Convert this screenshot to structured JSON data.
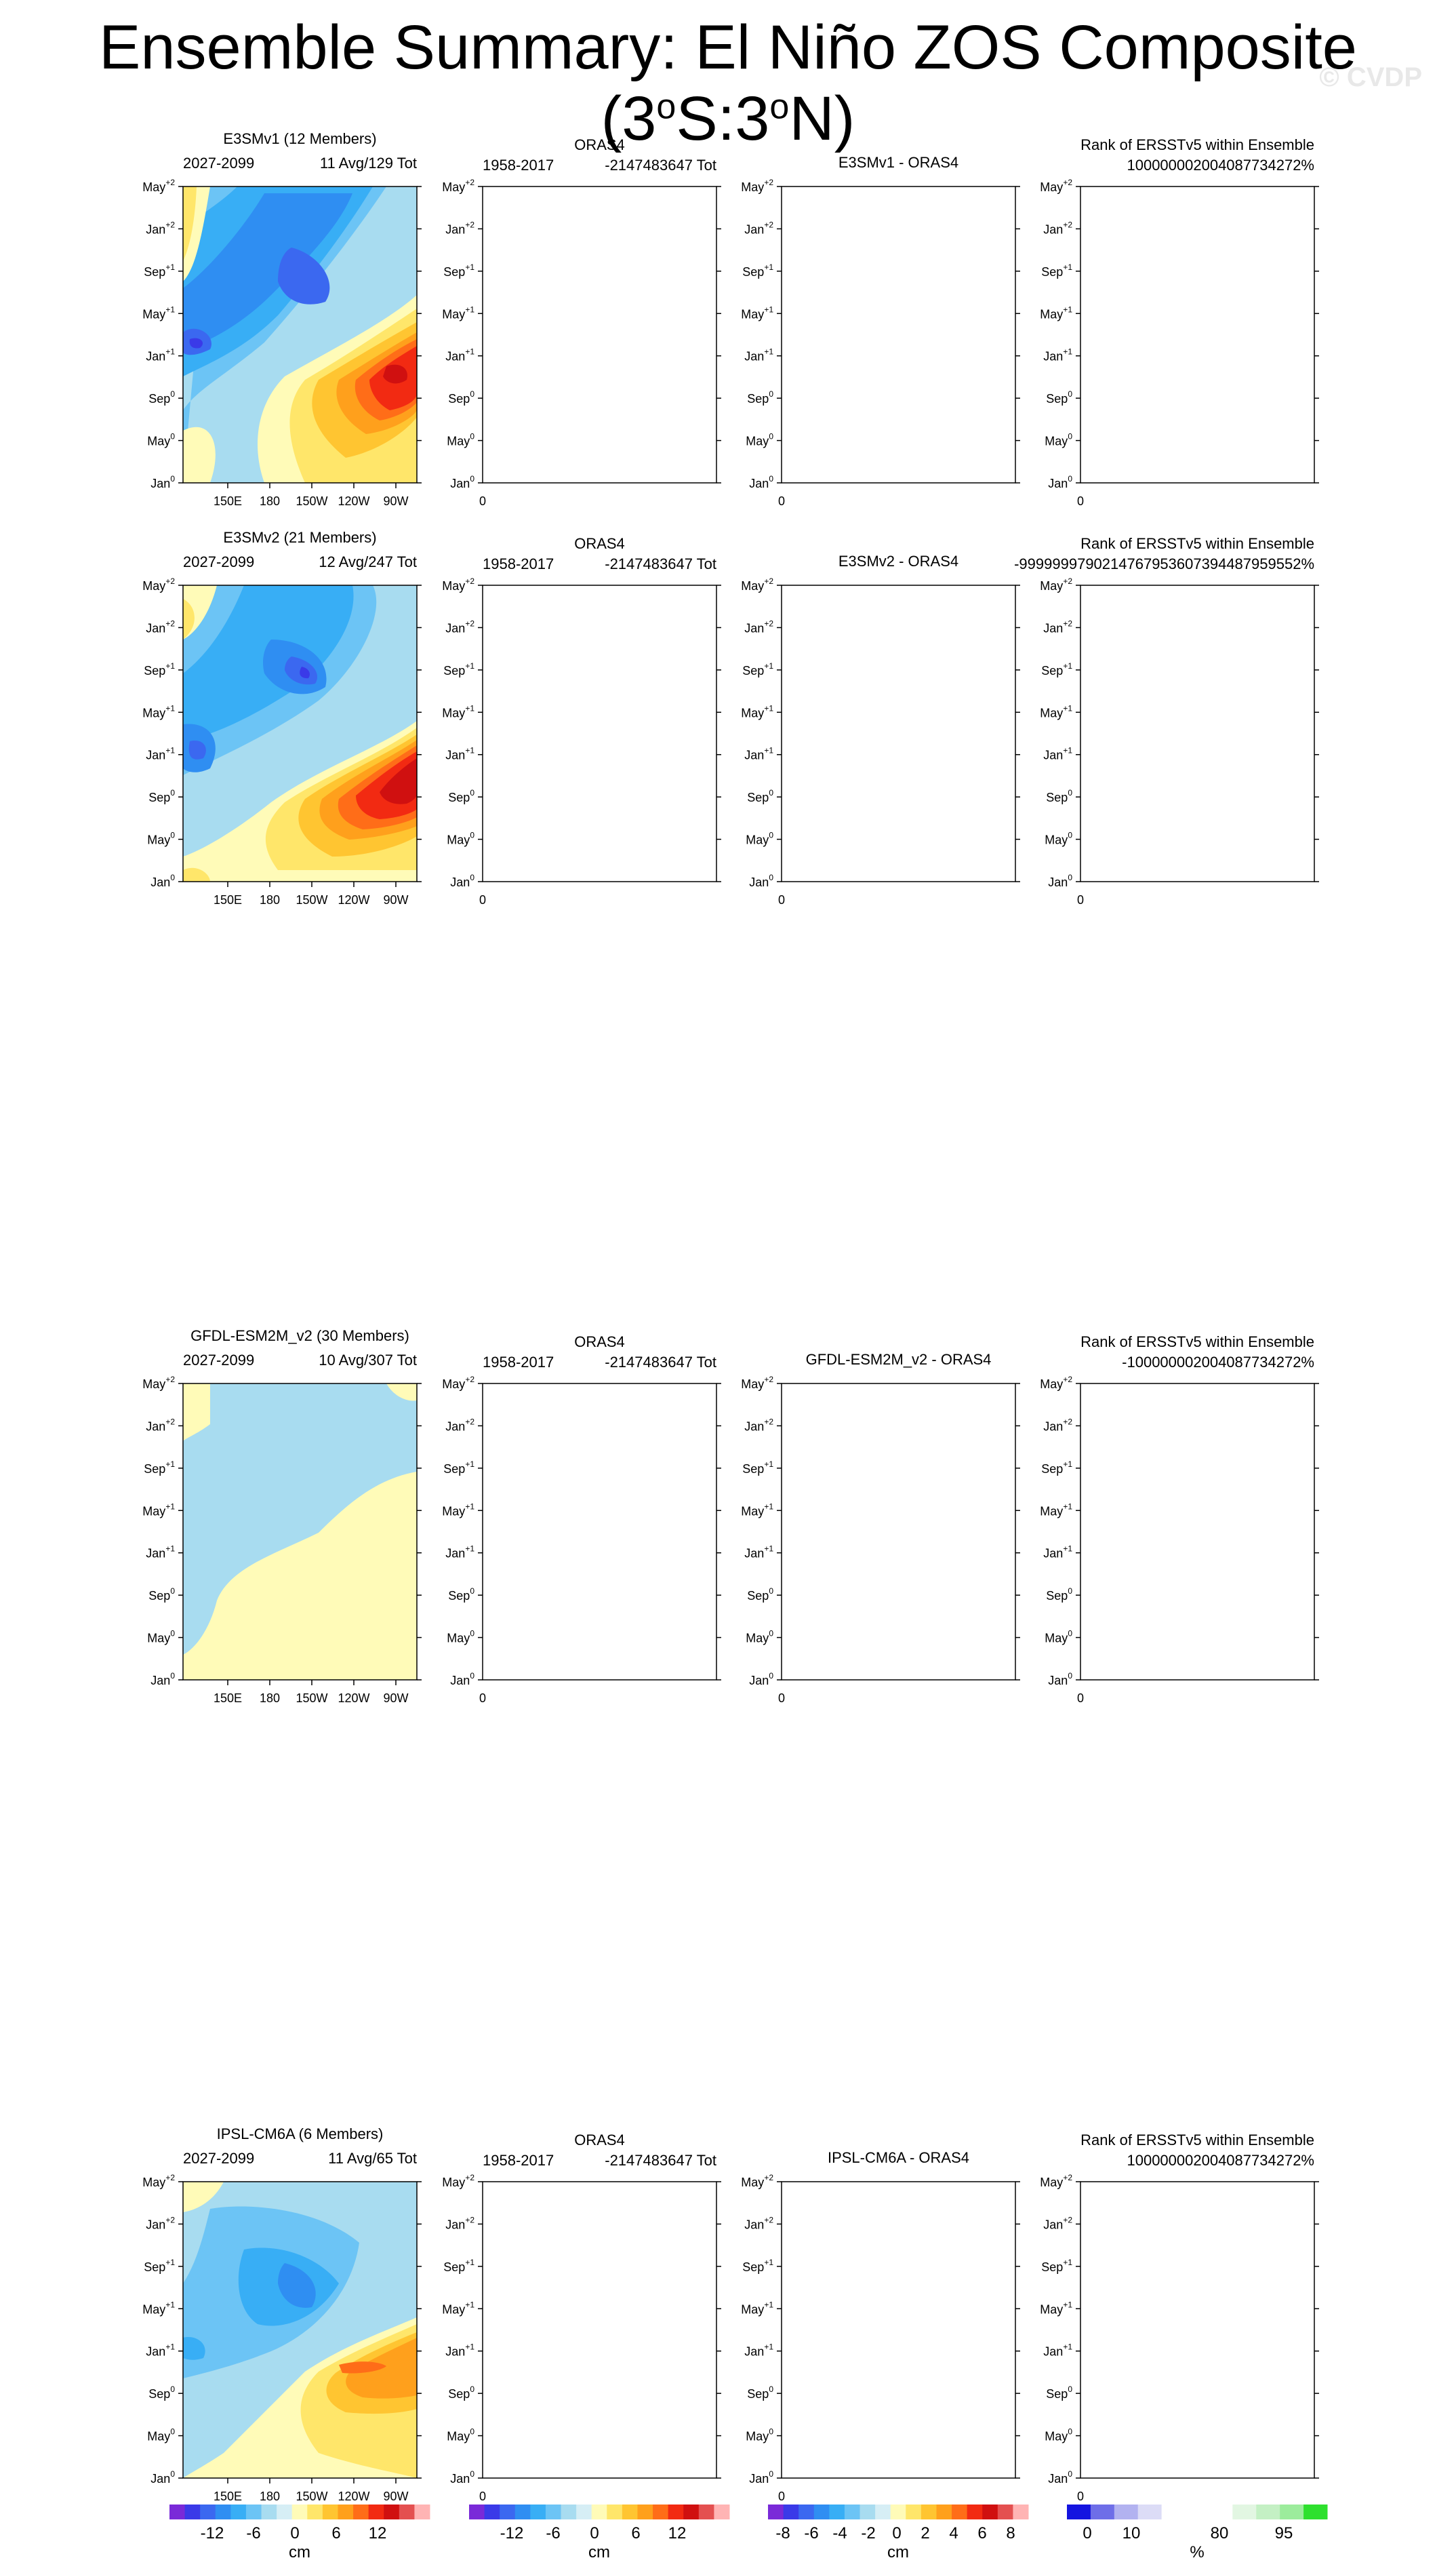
{
  "page": {
    "title_main": "Ensemble Summary: El Niño ZOS Composite (3",
    "title_deg1": "o",
    "title_mid": "S:3",
    "title_deg2": "o",
    "title_end": "N)",
    "watermark": "© CVDP"
  },
  "y_ticks": [
    {
      "base": "Jan",
      "sup": "0"
    },
    {
      "base": "May",
      "sup": "0"
    },
    {
      "base": "Sep",
      "sup": "0"
    },
    {
      "base": "Jan",
      "sup": "+1"
    },
    {
      "base": "May",
      "sup": "+1"
    },
    {
      "base": "Sep",
      "sup": "+1"
    },
    {
      "base": "Jan",
      "sup": "+2"
    },
    {
      "base": "May",
      "sup": "+2"
    }
  ],
  "x_ticks": [
    "150E",
    "180",
    "150W",
    "120W",
    "90W"
  ],
  "obs_x_tick": "0",
  "rows": [
    {
      "model": "E3SMv1 (12 Members)",
      "model_color": "#1f7a9a",
      "period": "2027-2099",
      "avg": "11 Avg/129 Tot",
      "obs_title": "ORAS4",
      "obs_period": "1958-2017",
      "obs_tot": "-2147483647 Tot",
      "diff_title": "E3SMv1 - ORAS4",
      "rank_title": "Rank of ERSSTv5 within Ensemble",
      "rank_value": "10000000200408773427​2%",
      "field": "strong1"
    },
    {
      "model": "E3SMv2 (21 Members)",
      "model_color": "#4f9a4f",
      "period": "2027-2099",
      "avg": "12 Avg/247 Tot",
      "obs_title": "ORAS4",
      "obs_period": "1958-2017",
      "obs_tot": "-2147483647 Tot",
      "diff_title": "E3SMv2 - ORAS4",
      "rank_title": "Rank of ERSSTv5 within Ensemble",
      "rank_value": "-99999997902147679536073944879595​52%",
      "field": "strong2"
    },
    {
      "model": "GFDL-ESM2M_v2 (30 Members)",
      "model_color": "#9a4a1a",
      "period": "2027-2099",
      "avg": "10 Avg/307 Tot",
      "obs_title": "ORAS4",
      "obs_period": "1958-2017",
      "obs_tot": "-2147483647 Tot",
      "diff_title": "GFDL-ESM2M_v2 - ORAS4",
      "rank_title": "Rank of ERSSTv5 within Ensemble",
      "rank_value": "-10000000200408773427​2%",
      "field": "weak"
    },
    {
      "model": "IPSL-CM6A (6 Members)",
      "model_color": "#d7a878",
      "period": "2027-2099",
      "avg": "11 Avg/65 Tot",
      "obs_title": "ORAS4",
      "obs_period": "1958-2017",
      "obs_tot": "-2147483647 Tot",
      "diff_title": "IPSL-CM6A - ORAS4",
      "rank_title": "Rank of ERSSTv5 within Ensemble",
      "rank_value": "10000000200408773427​2%",
      "field": "medium"
    }
  ],
  "colorbars": [
    {
      "unit": "cm",
      "labels": [
        "-12",
        "-6",
        "0",
        "6",
        "12"
      ],
      "colors": [
        "#7a2ad8",
        "#3a3ae8",
        "#3b68f0",
        "#2f8ef2",
        "#38aef5",
        "#6cc4f5",
        "#a8dcf0",
        "#d6eef5",
        "#fffbb8",
        "#ffe66a",
        "#ffc531",
        "#ffa01c",
        "#ff6d18",
        "#f22a12",
        "#d01010",
        "#e45050",
        "#ffb4b4"
      ]
    },
    {
      "unit": "cm",
      "labels": [
        "-12",
        "-6",
        "0",
        "6",
        "12"
      ],
      "colors": [
        "#7a2ad8",
        "#3a3ae8",
        "#3b68f0",
        "#2f8ef2",
        "#38aef5",
        "#6cc4f5",
        "#a8dcf0",
        "#d6eef5",
        "#fffbb8",
        "#ffe66a",
        "#ffc531",
        "#ffa01c",
        "#ff6d18",
        "#f22a12",
        "#d01010",
        "#e45050",
        "#ffb4b4"
      ]
    },
    {
      "unit": "cm",
      "labels": [
        "-8",
        "-6",
        "-4",
        "-2",
        "0",
        "2",
        "4",
        "6",
        "8"
      ],
      "colors": [
        "#7a2ad8",
        "#3a3ae8",
        "#3b68f0",
        "#2f8ef2",
        "#38aef5",
        "#6cc4f5",
        "#a8dcf0",
        "#d6eef5",
        "#fffbb8",
        "#ffe66a",
        "#ffc531",
        "#ffa01c",
        "#ff6d18",
        "#f22a12",
        "#d01010",
        "#e45050",
        "#ffb4b4"
      ]
    },
    {
      "unit": "%",
      "labels": [
        "0",
        "10",
        "80",
        "95"
      ],
      "colors": [
        "#1414e0",
        "#6e6ee8",
        "#b2b2f0",
        "#dcdcf6",
        "#ffffff",
        "#ffffff",
        "#ffffff",
        "#e2f6e2",
        "#c4f0c4",
        "#9cec9c",
        "#2ee02e"
      ]
    }
  ],
  "chart_data": {
    "type": "heatmap",
    "title": "Ensemble Summary: El Niño ZOS Composite (3oS:3oN)",
    "x_axis": "longitude",
    "y_axis": "month (Jan0 - May+2)",
    "units": "cm",
    "panels": [
      {
        "name": "E3SMv1 (12 Members)",
        "max_positive": 14,
        "min_negative": -10
      },
      {
        "name": "E3SMv2 (21 Members)",
        "max_positive": 14,
        "min_negative": -12
      },
      {
        "name": "GFDL-ESM2M_v2 (30 Members)",
        "max_positive": 2,
        "min_negative": -2
      },
      {
        "name": "IPSL-CM6A (6 Members)",
        "max_positive": 8,
        "min_negative": -8
      }
    ]
  }
}
